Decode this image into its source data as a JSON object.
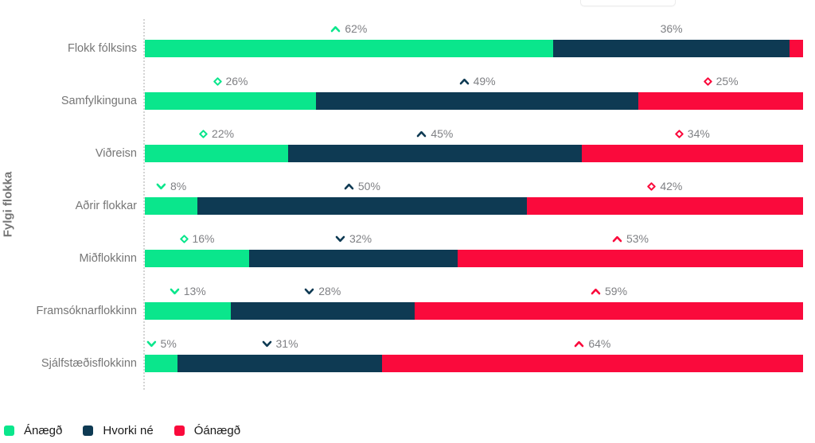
{
  "chart_data": {
    "type": "bar",
    "orientation": "horizontal",
    "stacked": true,
    "title": "",
    "xlabel": "",
    "ylabel": "Fylgi flokka",
    "value_unit": "%",
    "label_color": "#7f8084",
    "legend_position": "bottom-left",
    "series": [
      {
        "name": "Ánægð",
        "color": "#0AE68C"
      },
      {
        "name": "Hvorki né",
        "color": "#0E3A53"
      },
      {
        "name": "Óánægð",
        "color": "#FA0A3C"
      }
    ],
    "categories": [
      "Flokk fólksins",
      "Samfylkinguna",
      "Viðreisn",
      "Aðrir flokkar",
      "Miðflokkinn",
      "Framsóknarflokkinn",
      "Sjálfstæðisflokkinn"
    ],
    "rows": [
      {
        "category": "Flokk fólksins",
        "values": [
          {
            "pct": 62,
            "label": "62%",
            "icon": "caret-up"
          },
          {
            "pct": 36,
            "label": "36%",
            "icon": "none"
          },
          {
            "pct": 2,
            "label": "",
            "icon": "none"
          }
        ]
      },
      {
        "category": "Samfylkinguna",
        "values": [
          {
            "pct": 26,
            "label": "26%",
            "icon": "diamond"
          },
          {
            "pct": 49,
            "label": "49%",
            "icon": "caret-up"
          },
          {
            "pct": 25,
            "label": "25%",
            "icon": "diamond"
          }
        ]
      },
      {
        "category": "Viðreisn",
        "values": [
          {
            "pct": 22,
            "label": "22%",
            "icon": "diamond"
          },
          {
            "pct": 45,
            "label": "45%",
            "icon": "caret-up"
          },
          {
            "pct": 34,
            "label": "34%",
            "icon": "diamond"
          }
        ]
      },
      {
        "category": "Aðrir flokkar",
        "values": [
          {
            "pct": 8,
            "label": "8%",
            "icon": "caret-down"
          },
          {
            "pct": 50,
            "label": "50%",
            "icon": "caret-up"
          },
          {
            "pct": 42,
            "label": "42%",
            "icon": "diamond"
          }
        ]
      },
      {
        "category": "Miðflokkinn",
        "values": [
          {
            "pct": 16,
            "label": "16%",
            "icon": "diamond"
          },
          {
            "pct": 32,
            "label": "32%",
            "icon": "caret-down"
          },
          {
            "pct": 53,
            "label": "53%",
            "icon": "caret-up"
          }
        ]
      },
      {
        "category": "Framsóknarflokkinn",
        "values": [
          {
            "pct": 13,
            "label": "13%",
            "icon": "caret-down"
          },
          {
            "pct": 28,
            "label": "28%",
            "icon": "caret-down"
          },
          {
            "pct": 59,
            "label": "59%",
            "icon": "caret-up"
          }
        ]
      },
      {
        "category": "Sjálfstæðisflokkinn",
        "values": [
          {
            "pct": 5,
            "label": "5%",
            "icon": "caret-down"
          },
          {
            "pct": 31,
            "label": "31%",
            "icon": "caret-down"
          },
          {
            "pct": 64,
            "label": "64%",
            "icon": "caret-up"
          }
        ]
      }
    ]
  }
}
